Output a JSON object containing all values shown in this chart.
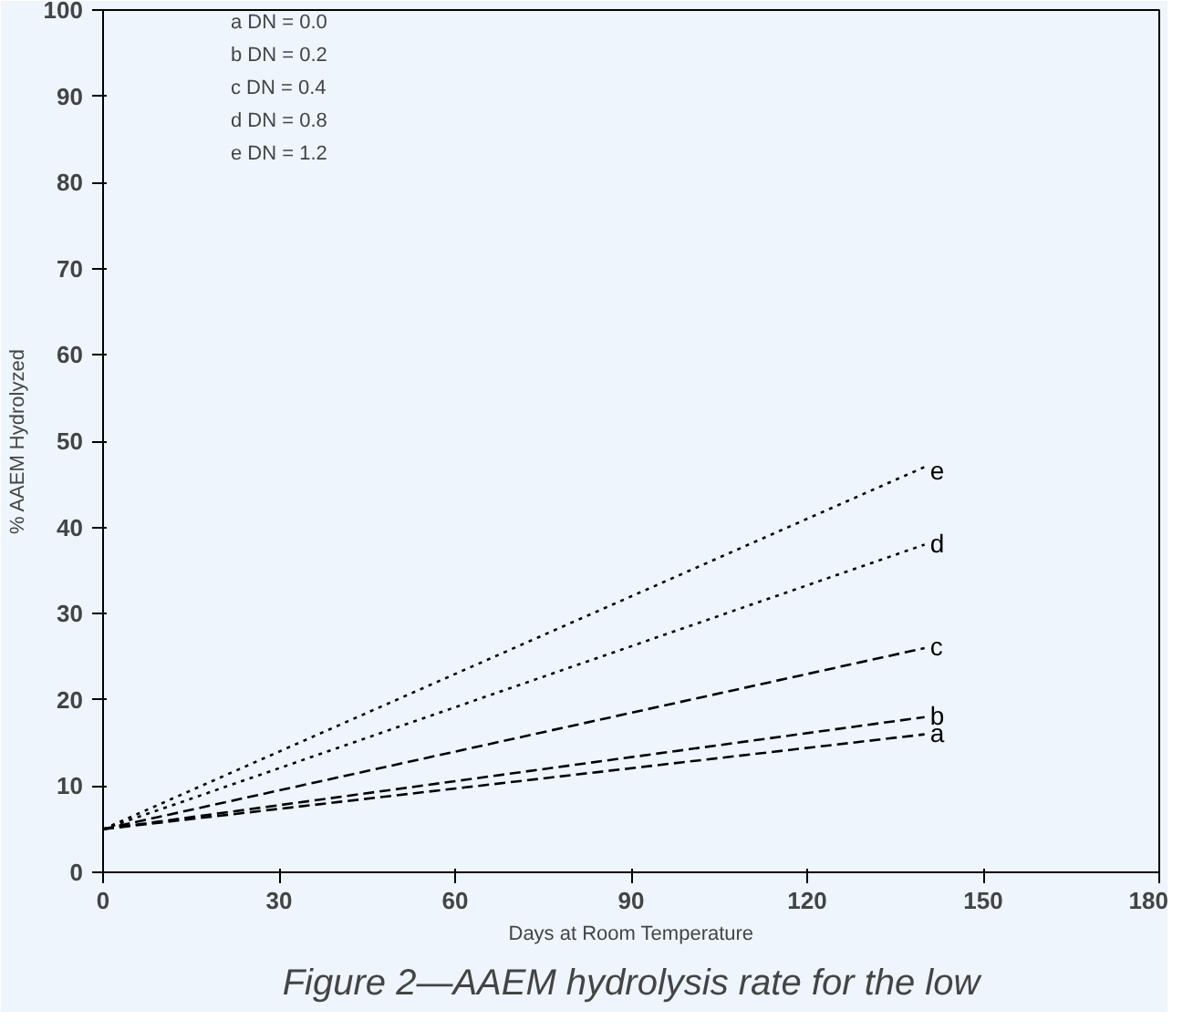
{
  "chart_data": {
    "type": "line",
    "xlabel": "Days at Room Temperature",
    "ylabel": "% AAEM Hydrolyzed",
    "x": [
      0,
      140
    ],
    "series": [
      {
        "name": "a",
        "color": "#000000",
        "line_style": "dashed",
        "values": [
          5,
          16
        ]
      },
      {
        "name": "b",
        "color": "#000000",
        "line_style": "dashed",
        "values": [
          5,
          18
        ]
      },
      {
        "name": "c",
        "color": "#000000",
        "line_style": "dashed",
        "values": [
          5,
          26
        ]
      },
      {
        "name": "d",
        "color": "#000000",
        "line_style": "dotted",
        "values": [
          5,
          38
        ]
      },
      {
        "name": "e",
        "color": "#000000",
        "line_style": "dotted",
        "values": [
          5,
          47
        ]
      }
    ],
    "xlim": [
      0,
      180
    ],
    "xticks": [
      0,
      30,
      60,
      90,
      120,
      150,
      180
    ],
    "ylim": [
      0,
      100
    ],
    "yticks": [
      0,
      10,
      20,
      30,
      40,
      50,
      60,
      70,
      80,
      90,
      100
    ],
    "grid": false,
    "marker": "none",
    "annotations": [
      "a     DN = 0.0",
      "b     DN = 0.2",
      "c     DN = 0.4",
      "d     DN = 0.8",
      "e     DN = 1.2",
      "Figure 2—AAEM hydrolysis rate for the low"
    ]
  }
}
